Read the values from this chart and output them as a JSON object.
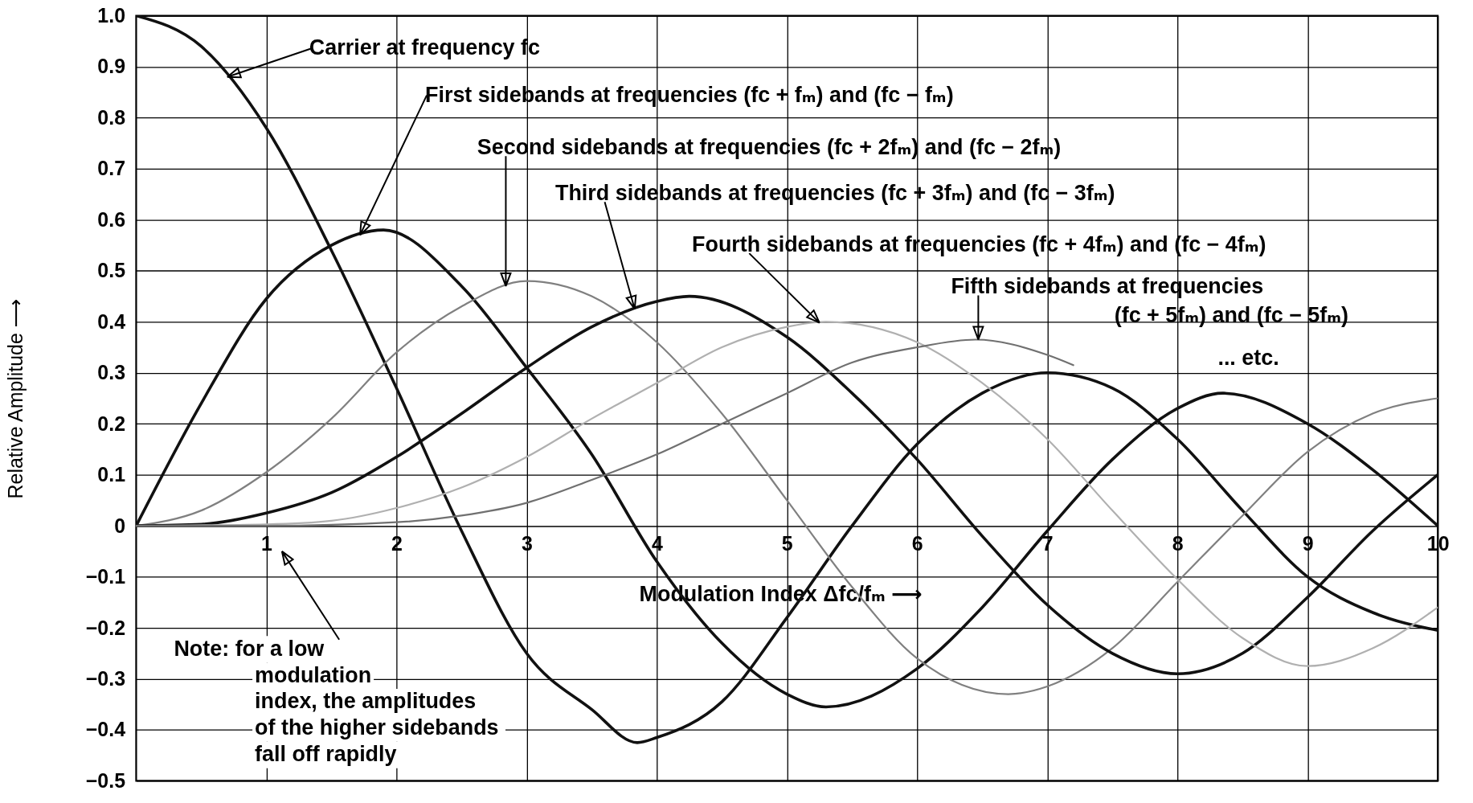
{
  "chart_data": {
    "type": "line",
    "xlabel": "Modulation Index Δfc/fₘ ⟶",
    "ylabel": "Relative Amplitude ⟶",
    "xlim": [
      0,
      10
    ],
    "ylim": [
      -0.5,
      1.0
    ],
    "xticks": [
      1,
      2,
      3,
      4,
      5,
      6,
      7,
      8,
      9,
      10
    ],
    "yticks": [
      -0.5,
      -0.4,
      -0.3,
      -0.2,
      -0.1,
      0,
      0.1,
      0.2,
      0.3,
      0.4,
      0.5,
      0.6,
      0.7,
      0.8,
      0.9,
      {
        "value": 1,
        "label": "1.0"
      }
    ],
    "grid": true,
    "series": [
      {
        "color": "#111111",
        "x": [
          0,
          0.5,
          1,
          1.5,
          2,
          2.5,
          3,
          3.5,
          3.85,
          4,
          4.5,
          5,
          5.5,
          6,
          6.5,
          7,
          7.5,
          8,
          8.5,
          9,
          9.5,
          10
        ],
        "values": [
          1.0,
          0.94,
          0.78,
          0.54,
          0.27,
          -0.01,
          -0.25,
          -0.36,
          -0.425,
          -0.415,
          -0.345,
          -0.18,
          0.0,
          0.16,
          0.26,
          0.3,
          0.27,
          0.17,
          0.03,
          -0.1,
          -0.17,
          -0.205
        ]
      },
      {
        "color": "#111111",
        "x": [
          0,
          0.5,
          1,
          1.5,
          1.9,
          2.5,
          3,
          3.5,
          4,
          4.5,
          5,
          5.3,
          6,
          6.5,
          7,
          7.5,
          8,
          8.35,
          9,
          9.5,
          10
        ],
        "values": [
          0,
          0.24,
          0.445,
          0.55,
          0.58,
          0.47,
          0.31,
          0.14,
          -0.07,
          -0.23,
          -0.33,
          -0.355,
          -0.28,
          -0.16,
          -0.01,
          0.13,
          0.23,
          0.26,
          0.2,
          0.11,
          0.0
        ]
      },
      {
        "color": "#808080",
        "x": [
          0,
          0.5,
          1,
          1.5,
          2,
          2.5,
          3,
          3.5,
          4,
          4.5,
          5,
          5.5,
          6,
          6.7,
          7,
          7.5,
          8,
          8.5,
          9,
          9.5,
          10
        ],
        "values": [
          0,
          0.03,
          0.105,
          0.21,
          0.34,
          0.43,
          0.48,
          0.45,
          0.36,
          0.22,
          0.05,
          -0.12,
          -0.26,
          -0.33,
          -0.315,
          -0.24,
          -0.11,
          0.02,
          0.145,
          0.22,
          0.25
        ]
      },
      {
        "color": "#111111",
        "x": [
          0,
          0.5,
          1,
          1.5,
          2,
          2.5,
          3,
          3.5,
          4,
          4.25,
          5,
          5.5,
          6,
          6.5,
          7,
          7.5,
          8,
          8.5,
          9,
          9.5,
          10
        ],
        "values": [
          0,
          0.003,
          0.025,
          0.065,
          0.135,
          0.22,
          0.31,
          0.39,
          0.44,
          0.45,
          0.37,
          0.26,
          0.13,
          -0.02,
          -0.155,
          -0.25,
          -0.29,
          -0.25,
          -0.14,
          -0.01,
          0.1
        ]
      },
      {
        "color": "#b0b0b0",
        "x": [
          0,
          1,
          1.5,
          2,
          2.5,
          3,
          3.5,
          4,
          4.5,
          5,
          5.3,
          6,
          6.5,
          7,
          7.5,
          8,
          8.5,
          9,
          9.5,
          10
        ],
        "values": [
          0,
          0.003,
          0.01,
          0.035,
          0.075,
          0.135,
          0.21,
          0.28,
          0.35,
          0.39,
          0.4,
          0.36,
          0.28,
          0.17,
          0.03,
          -0.105,
          -0.22,
          -0.275,
          -0.24,
          -0.16
        ]
      },
      {
        "color": "#707070",
        "x": [
          0,
          1,
          2,
          2.5,
          3,
          3.5,
          4,
          4.5,
          5,
          5.5,
          6,
          6.45,
          7,
          7.2
        ],
        "values": [
          0,
          0.0,
          0.007,
          0.02,
          0.045,
          0.09,
          0.14,
          0.2,
          0.26,
          0.32,
          0.35,
          0.365,
          0.335,
          0.315
        ]
      }
    ],
    "annotations": [
      {
        "text": "Carrier at frequency fc",
        "x": 0.7,
        "y": 0.88
      },
      {
        "text": "First sidebands at frequencies (fc + fₘ) and (fc − fₘ)",
        "x": 1.72,
        "y": 0.57
      },
      {
        "text": "Second sidebands at frequencies (fc + 2fₘ) and (fc − 2fₘ)",
        "x": 2.84,
        "y": 0.47
      },
      {
        "text": "Third sidebands at frequencies (fc + 3fₘ) and (fc − 3fₘ)",
        "x": 3.83,
        "y": 0.425
      },
      {
        "text": "Fourth sidebands at frequencies (fc + 4fₘ) and (fc − 4fₘ)",
        "x": 5.25,
        "y": 0.398
      },
      {
        "text": "Fifth sidebands at frequencies\n(fc + 5fₘ) and (fc − 5fₘ)",
        "x": 6.47,
        "y": 0.365
      },
      "... etc.",
      "Note: for a low\nmodulation\nindex, the amplitudes\nof the higher sidebands\nfall off rapidly"
    ]
  }
}
